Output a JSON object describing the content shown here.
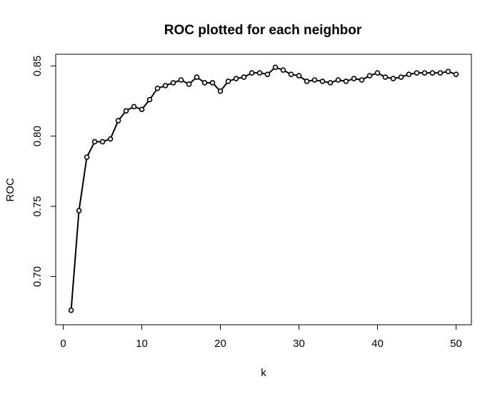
{
  "chart_data": {
    "type": "line",
    "title": "ROC plotted for each neighbor",
    "xlabel": "k",
    "ylabel": "ROC",
    "xlim": [
      -0.96,
      51.96
    ],
    "ylim": [
      0.6657,
      0.8583
    ],
    "xticks": [
      0,
      10,
      20,
      30,
      40,
      50
    ],
    "xtick_labels": [
      "0",
      "10",
      "20",
      "30",
      "40",
      "50"
    ],
    "yticks": [
      0.7,
      0.75,
      0.8,
      0.85
    ],
    "ytick_labels": [
      "0.70",
      "0.75",
      "0.80",
      "0.85"
    ],
    "grid": false,
    "legend": "none",
    "series": [
      {
        "color": "#000000",
        "marker": "open-circle",
        "x": [
          1,
          2,
          3,
          4,
          5,
          6,
          7,
          8,
          9,
          10,
          11,
          12,
          13,
          14,
          15,
          16,
          17,
          18,
          19,
          20,
          21,
          22,
          23,
          24,
          25,
          26,
          27,
          28,
          29,
          30,
          31,
          32,
          33,
          34,
          35,
          36,
          37,
          38,
          39,
          40,
          41,
          42,
          43,
          44,
          45,
          46,
          47,
          48,
          49,
          50
        ],
        "y": [
          0.676,
          0.747,
          0.785,
          0.796,
          0.796,
          0.798,
          0.811,
          0.818,
          0.821,
          0.819,
          0.826,
          0.834,
          0.836,
          0.838,
          0.84,
          0.837,
          0.842,
          0.838,
          0.838,
          0.832,
          0.839,
          0.841,
          0.842,
          0.845,
          0.845,
          0.844,
          0.849,
          0.847,
          0.844,
          0.843,
          0.839,
          0.84,
          0.839,
          0.838,
          0.84,
          0.839,
          0.841,
          0.84,
          0.843,
          0.845,
          0.842,
          0.841,
          0.842,
          0.844,
          0.845,
          0.845,
          0.845,
          0.845,
          0.846,
          0.844
        ]
      }
    ]
  }
}
